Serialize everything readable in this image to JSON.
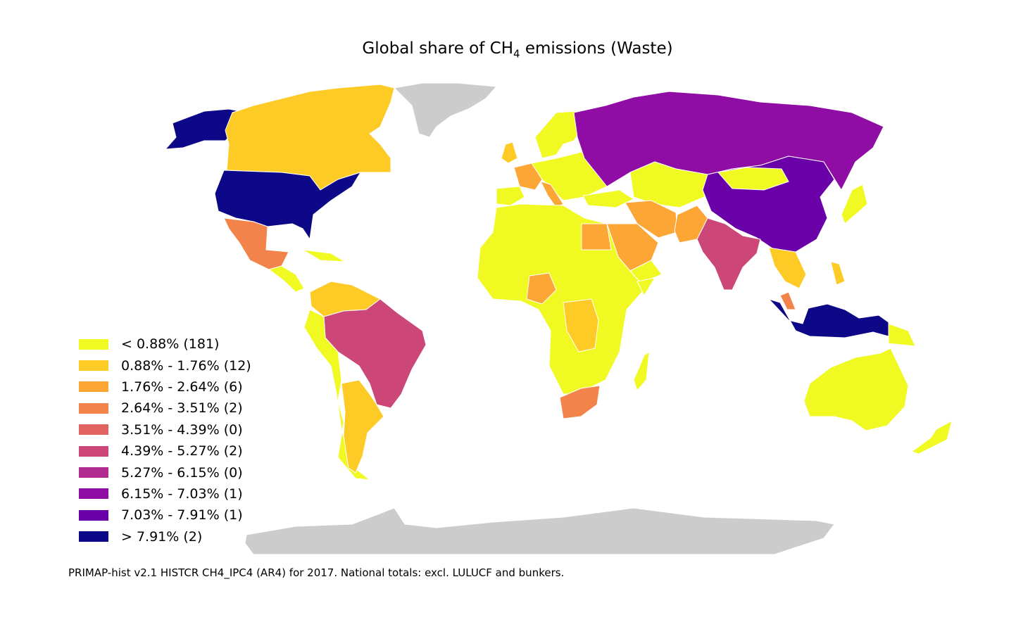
{
  "title": {
    "prefix": "Global share of CH",
    "subscript": "4",
    "suffix": " emissions (Waste)"
  },
  "colors": {
    "no_data": "#cccccc",
    "bins": [
      "#f0f921",
      "#fdca26",
      "#fca636",
      "#f2844b",
      "#e16462",
      "#cc4778",
      "#b12a90",
      "#8f0da4",
      "#6a00a8",
      "#0d0887"
    ]
  },
  "legend": [
    {
      "label": "< 0.88% (181)",
      "color": "#f0f921"
    },
    {
      "label": "0.88% - 1.76% (12)",
      "color": "#fdca26"
    },
    {
      "label": "1.76% - 2.64% (6)",
      "color": "#fca636"
    },
    {
      "label": "2.64% - 3.51% (2)",
      "color": "#f2844b"
    },
    {
      "label": "3.51% - 4.39% (0)",
      "color": "#e16462"
    },
    {
      "label": "4.39% - 5.27% (2)",
      "color": "#cc4778"
    },
    {
      "label": "5.27% - 6.15% (0)",
      "color": "#b12a90"
    },
    {
      "label": "6.15% - 7.03% (1)",
      "color": "#8f0da4"
    },
    {
      "label": "7.03% - 7.91% (1)",
      "color": "#6a00a8"
    },
    {
      "label": "> 7.91% (2)",
      "color": "#0d0887"
    }
  ],
  "footnote": "PRIMAP-hist v2.1 HISTCR CH4_IPC4 (AR4) for 2017. National totals: excl. LULUCF and bunkers."
}
